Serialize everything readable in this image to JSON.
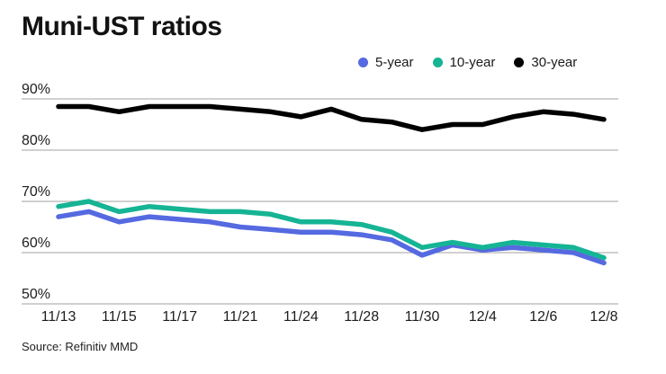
{
  "title": "Muni-UST ratios",
  "source": "Source: Refinitiv MMD",
  "legend": {
    "items": [
      {
        "label": "5-year",
        "color": "#5569e0"
      },
      {
        "label": "10-year",
        "color": "#15b494"
      },
      {
        "label": "30-year",
        "color": "#000000"
      }
    ]
  },
  "colors": {
    "background": "#ffffff",
    "gridline": "#a0a0a0",
    "axis_text": "#1d1d1d",
    "title_text": "#121212",
    "blue_series": "#5569e0",
    "teal_series": "#15b494",
    "black_series": "#000000"
  },
  "chart_data": {
    "type": "line",
    "title": "Muni-UST ratios",
    "x": [
      "11/13",
      "11/14",
      "11/15",
      "11/16",
      "11/17",
      "11/20",
      "11/21",
      "11/22",
      "11/24",
      "11/27",
      "11/28",
      "11/29",
      "11/30",
      "12/1",
      "12/4",
      "12/5",
      "12/6",
      "12/7",
      "12/8"
    ],
    "x_tick_labels": [
      "11/13",
      "11/15",
      "11/17",
      "11/21",
      "11/24",
      "11/28",
      "11/30",
      "12/4",
      "12/6",
      "12/8"
    ],
    "series": [
      {
        "name": "5-year",
        "color": "#5569e0",
        "values": [
          67,
          68,
          66,
          67,
          66.5,
          66,
          65,
          64.5,
          64,
          64,
          63.5,
          62.5,
          59.5,
          61.5,
          60.5,
          61,
          60.5,
          60,
          58
        ]
      },
      {
        "name": "10-year",
        "color": "#15b494",
        "values": [
          69,
          70,
          68,
          69,
          68.5,
          68,
          68,
          67.5,
          66,
          66,
          65.5,
          64,
          61,
          62,
          61,
          62,
          61.5,
          61,
          59
        ]
      },
      {
        "name": "30-year",
        "color": "#000000",
        "values": [
          88.5,
          88.5,
          87.5,
          88.5,
          88.5,
          88.5,
          88,
          87.5,
          86.5,
          88,
          86,
          85.5,
          84,
          85,
          85,
          86.5,
          87.5,
          87,
          86
        ]
      }
    ],
    "yticks": [
      90,
      80,
      70,
      60,
      50
    ],
    "ytick_suffix": "%",
    "ylim": [
      50,
      91
    ],
    "xlabel": "",
    "ylabel": "",
    "grid": "horizontal",
    "legend_position": "top-right"
  }
}
